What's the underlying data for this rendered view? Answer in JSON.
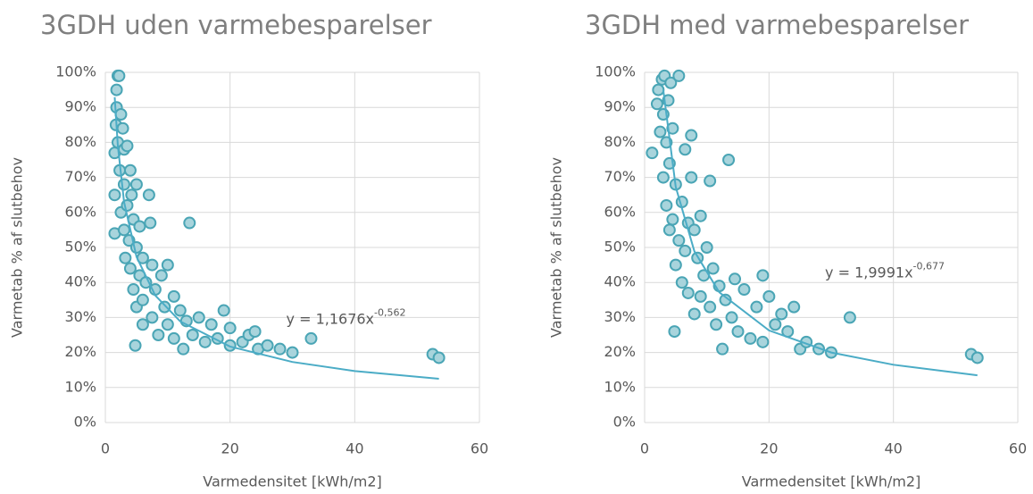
{
  "chart_data": [
    {
      "type": "scatter",
      "title": "3GDH uden varmebesparelser",
      "x_label": "Varmedensitet [kWh/m2]",
      "y_label": "Varmetab % af slutbehov",
      "annotation": {
        "text": "y = 1,1676x",
        "sup": "-0,562"
      },
      "xlim": [
        0,
        60
      ],
      "xticks": [
        0,
        20,
        40,
        60
      ],
      "ylim": [
        0,
        100
      ],
      "yticks": [
        {
          "value": 0,
          "label": "0%"
        },
        {
          "value": 10,
          "label": "10%"
        },
        {
          "value": 20,
          "label": "20%"
        },
        {
          "value": 30,
          "label": "30%"
        },
        {
          "value": 40,
          "label": "40%"
        },
        {
          "value": 50,
          "label": "50%"
        },
        {
          "value": 60,
          "label": "60%"
        },
        {
          "value": 70,
          "label": "70%"
        },
        {
          "value": 80,
          "label": "80%"
        },
        {
          "value": 90,
          "label": "90%"
        },
        {
          "value": 100,
          "label": "100%"
        }
      ],
      "grid": true,
      "color": "#a8d4dc",
      "edge_color": "#4aa5b5",
      "trend_color": "#4bacc6",
      "x": [
        1.5,
        1.5,
        1.5,
        1.7,
        1.8,
        1.8,
        2,
        2.2,
        2,
        2.3,
        2.5,
        2.5,
        2.8,
        3,
        3,
        3,
        3.2,
        3.5,
        3.5,
        3.8,
        4,
        4,
        4.2,
        4.5,
        4.5,
        4.8,
        5,
        5,
        5,
        5.5,
        5.5,
        6,
        6,
        6,
        6.5,
        7,
        7.2,
        7.5,
        7.5,
        8,
        8.5,
        9,
        9.5,
        10,
        10,
        11,
        11,
        12,
        12.5,
        13,
        13.5,
        14,
        15,
        16,
        17,
        18,
        19,
        20,
        20,
        22,
        23,
        24,
        24.5,
        26,
        28,
        30,
        33,
        52.5,
        53.5
      ],
      "values": [
        54,
        65,
        77,
        85,
        90,
        95,
        99,
        99,
        80,
        72,
        88,
        60,
        84,
        78,
        68,
        55,
        47,
        79,
        62,
        52,
        72,
        44,
        65,
        58,
        38,
        22,
        68,
        50,
        33,
        56,
        42,
        47,
        35,
        28,
        40,
        65,
        57,
        45,
        30,
        38,
        25,
        42,
        33,
        45,
        28,
        36,
        24,
        32,
        21,
        29,
        57,
        25,
        30,
        23,
        28,
        24,
        32,
        22,
        27,
        23,
        25,
        26,
        21,
        22,
        21,
        20,
        24,
        19.5,
        18.5
      ],
      "trendline": {
        "x": [
          1.5,
          2,
          3,
          5,
          8,
          12,
          20,
          30,
          40,
          53.5
        ],
        "values": [
          92.9,
          79.1,
          63.0,
          47.3,
          36.3,
          28.9,
          21.7,
          17.3,
          14.7,
          12.5
        ]
      }
    },
    {
      "type": "scatter",
      "title": "3GDH med varmebesparelser",
      "x_label": "Varmedensitet [kWh/m2]",
      "y_label": "Varmetab % af slutbehov",
      "annotation": {
        "text": "y = 1,9991x",
        "sup": "-0,677"
      },
      "xlim": [
        0,
        60
      ],
      "xticks": [
        0,
        20,
        40,
        60
      ],
      "ylim": [
        0,
        100
      ],
      "yticks": [
        {
          "value": 0,
          "label": "0%"
        },
        {
          "value": 10,
          "label": "10%"
        },
        {
          "value": 20,
          "label": "20%"
        },
        {
          "value": 30,
          "label": "30%"
        },
        {
          "value": 40,
          "label": "40%"
        },
        {
          "value": 50,
          "label": "50%"
        },
        {
          "value": 60,
          "label": "60%"
        },
        {
          "value": 70,
          "label": "70%"
        },
        {
          "value": 80,
          "label": "80%"
        },
        {
          "value": 90,
          "label": "90%"
        },
        {
          "value": 100,
          "label": "100%"
        }
      ],
      "grid": true,
      "color": "#a8d4dc",
      "edge_color": "#4aa5b5",
      "trend_color": "#4bacc6",
      "x": [
        1.2,
        2,
        2.2,
        2.5,
        2.8,
        3,
        3,
        3.2,
        3.5,
        3.5,
        3.8,
        4,
        4,
        4.2,
        4.5,
        4.5,
        4.8,
        5,
        5,
        5.5,
        5.5,
        6,
        6,
        6.5,
        6.5,
        7,
        7,
        7.5,
        7.5,
        8,
        8,
        8.5,
        9,
        9,
        9.5,
        10,
        10.5,
        10.5,
        11,
        11.5,
        12,
        12.5,
        13,
        13.5,
        14,
        14.5,
        15,
        16,
        17,
        18,
        19,
        19,
        20,
        21,
        22,
        23,
        24,
        25,
        26,
        28,
        30,
        33,
        52.5,
        53.5
      ],
      "values": [
        77,
        91,
        95,
        83,
        98,
        70,
        88,
        99,
        80,
        62,
        92,
        74,
        55,
        97,
        58,
        84,
        26,
        68,
        45,
        99,
        52,
        63,
        40,
        78,
        49,
        57,
        37,
        82,
        70,
        55,
        31,
        47,
        59,
        36,
        42,
        50,
        69,
        33,
        44,
        28,
        39,
        21,
        35,
        75,
        30,
        41,
        26,
        38,
        24,
        33,
        42,
        23,
        36,
        28,
        31,
        26,
        33,
        21,
        23,
        21,
        20,
        30,
        19.5,
        18.5
      ],
      "trendline": {
        "x": [
          3,
          5,
          8,
          12,
          20,
          30,
          40,
          53.5
        ],
        "values": [
          95.0,
          67.3,
          48.9,
          37.2,
          26.3,
          20.0,
          16.5,
          13.5
        ]
      }
    }
  ]
}
